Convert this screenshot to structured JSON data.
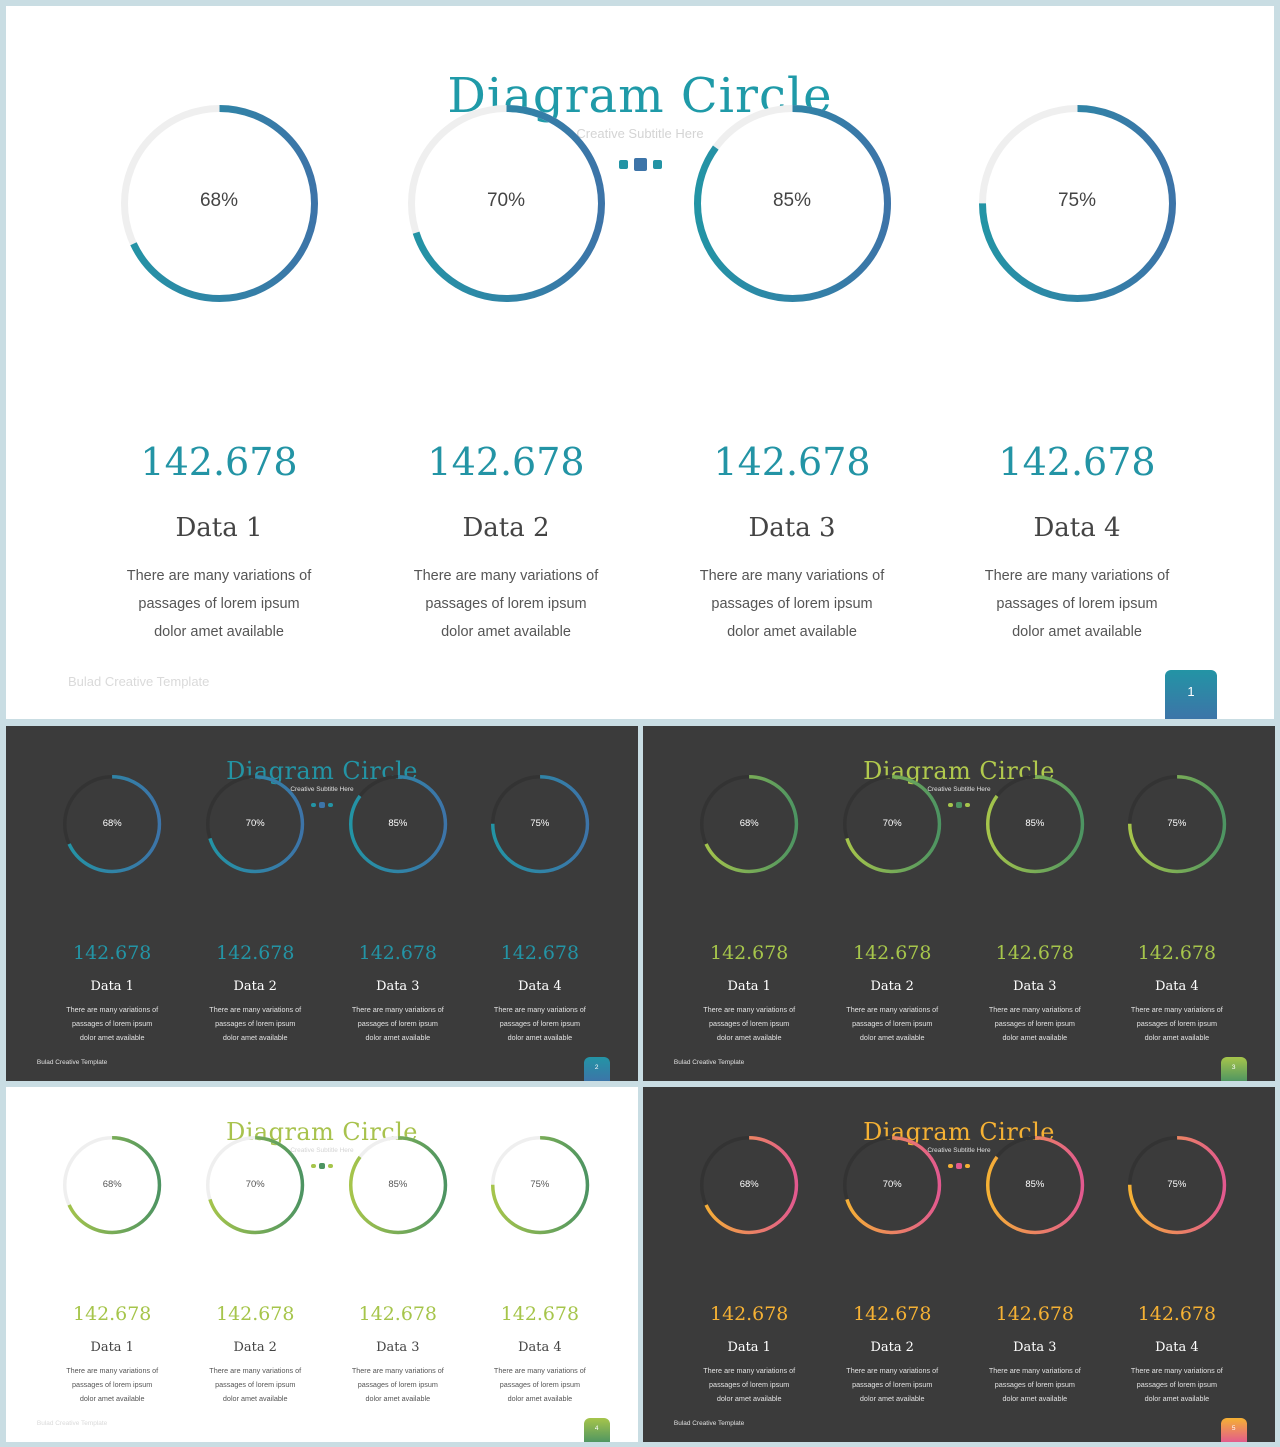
{
  "common": {
    "title": "Diagram Circle",
    "subtitle": "Creative Subtitle Here",
    "brand": "Bulad Creative Template",
    "items": [
      {
        "percent": 68,
        "percent_label": "68%",
        "value": "142.678",
        "label": "Data 1",
        "desc": [
          "There are many variations of",
          "passages of lorem ipsum",
          "dolor amet available"
        ]
      },
      {
        "percent": 70,
        "percent_label": "70%",
        "value": "142.678",
        "label": "Data 2",
        "desc": [
          "There are many variations of",
          "passages of lorem ipsum",
          "dolor amet available"
        ]
      },
      {
        "percent": 85,
        "percent_label": "85%",
        "value": "142.678",
        "label": "Data 3",
        "desc": [
          "There are many variations of",
          "passages of lorem ipsum",
          "dolor amet available"
        ]
      },
      {
        "percent": 75,
        "percent_label": "75%",
        "value": "142.678",
        "label": "Data 4",
        "desc": [
          "There are many variations of",
          "passages of lorem ipsum",
          "dolor amet available"
        ]
      }
    ]
  },
  "slides": [
    {
      "id": "slide-1",
      "theme": "light",
      "page": "1",
      "accent": "#2394a5",
      "grad_start": "#2394a5",
      "grad_end": "#3d74a8",
      "track": "#efefef",
      "title_color": "#1f9aa8",
      "text_color": "#555555",
      "label_color": "#444444",
      "pct_color": "#444444",
      "subtitle_color": "#d4d4d4",
      "brand_color": "#dadada"
    },
    {
      "id": "slide-2",
      "theme": "dark",
      "page": "2",
      "accent": "#2394a5",
      "grad_start": "#2394a5",
      "grad_end": "#3d74a8",
      "track": "#333333",
      "title_color": "#2394a5",
      "text_color": "#e2e2e2",
      "label_color": "#ffffff",
      "pct_color": "#ffffff",
      "subtitle_color": "#e0e0e0",
      "brand_color": "#e0e0e0"
    },
    {
      "id": "slide-3",
      "theme": "dark",
      "page": "3",
      "accent": "#a6c54b",
      "grad_start": "#a6c54b",
      "grad_end": "#4d9462",
      "track": "#333333",
      "title_color": "#b1c94d",
      "text_color": "#e2e2e2",
      "label_color": "#ffffff",
      "pct_color": "#ffffff",
      "subtitle_color": "#e0e0e0",
      "brand_color": "#e0e0e0"
    },
    {
      "id": "slide-4",
      "theme": "light",
      "page": "4",
      "accent": "#a6c54b",
      "grad_start": "#a6c54b",
      "grad_end": "#4d9462",
      "track": "#efefef",
      "title_color": "#a8c24d",
      "text_color": "#555555",
      "label_color": "#444444",
      "pct_color": "#555555",
      "subtitle_color": "#d4d4d4",
      "brand_color": "#dadada"
    },
    {
      "id": "slide-5",
      "theme": "dark",
      "page": "5",
      "accent": "#f5b134",
      "grad_start": "#f5b134",
      "grad_end": "#e2598f",
      "track": "#333333",
      "title_color": "#f5b134",
      "text_color": "#e2e2e2",
      "label_color": "#ffffff",
      "pct_color": "#ffffff",
      "subtitle_color": "#e0e0e0",
      "brand_color": "#e0e0e0"
    }
  ]
}
